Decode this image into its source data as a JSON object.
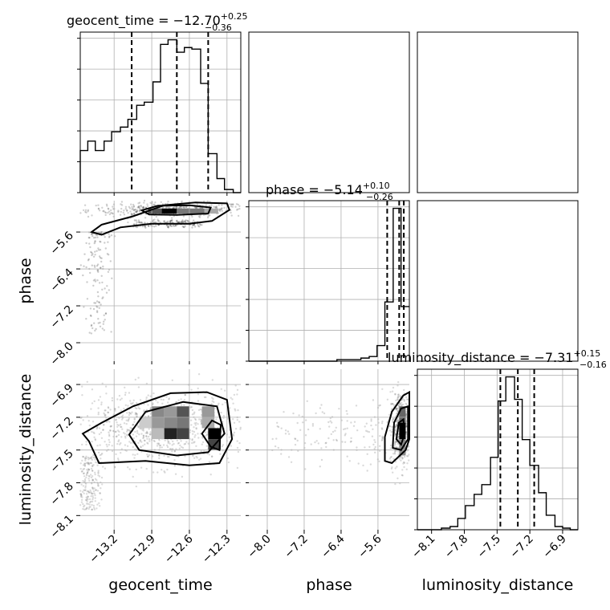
{
  "chart_data": {
    "type": "corner",
    "parameters": [
      "geocent_time",
      "phase",
      "luminosity_distance"
    ],
    "titles": [
      {
        "param": "geocent_time",
        "text": "geocent_time = −12.70",
        "plus": "+0.25",
        "minus": "−0.36"
      },
      {
        "param": "phase",
        "text": "phase = −5.14",
        "plus": "+0.10",
        "minus": "−0.26"
      },
      {
        "param": "luminosity_distance",
        "text": "luminosity_distance = −7.31",
        "plus": "+0.15",
        "minus": "−0.16"
      }
    ],
    "axis_labels": {
      "geocent_time": "geocent_time",
      "phase": "phase",
      "luminosity_distance": "luminosity_distance"
    },
    "ranges": {
      "geocent_time": [
        -13.47,
        -12.19
      ],
      "phase": [
        -8.4,
        -4.92
      ],
      "luminosity_distance": [
        -8.23,
        -6.76
      ]
    },
    "ticks": {
      "geocent_time": [
        -13.2,
        -12.9,
        -12.6,
        -12.3
      ],
      "phase": [
        -8.0,
        -7.2,
        -6.4,
        -5.6
      ],
      "luminosity_distance": [
        -8.1,
        -7.8,
        -7.5,
        -7.2,
        -6.9
      ]
    },
    "tick_labels": {
      "geocent_time": [
        "−13.2",
        "−12.9",
        "−12.6",
        "−12.3"
      ],
      "phase": [
        "−8.0",
        "−7.2",
        "−6.4",
        "−5.6"
      ],
      "luminosity_distance": [
        "−8.1",
        "−7.8",
        "−7.5",
        "−7.2",
        "−6.9"
      ]
    },
    "quantiles": {
      "geocent_time": [
        -13.06,
        -12.7,
        -12.45
      ],
      "phase": [
        -5.4,
        -5.14,
        -5.04
      ],
      "luminosity_distance": [
        -7.47,
        -7.31,
        -7.16
      ]
    },
    "histograms": {
      "geocent_time": {
        "edges": [
          -13.47,
          -13.41,
          -13.35,
          -13.28,
          -13.22,
          -13.15,
          -13.09,
          -13.02,
          -12.96,
          -12.89,
          -12.83,
          -12.77,
          -12.7,
          -12.64,
          -12.58,
          -12.51,
          -12.45,
          -12.38,
          -12.32,
          -12.25,
          -12.19
        ],
        "counts": [
          27,
          33,
          27,
          33,
          39,
          42,
          47,
          56,
          58,
          71,
          95,
          98,
          90,
          93,
          92,
          70,
          25,
          9,
          2,
          0
        ]
      },
      "phase": {
        "edges": [
          -8.4,
          -8.23,
          -8.05,
          -7.88,
          -7.71,
          -7.53,
          -7.36,
          -7.18,
          -7.01,
          -6.84,
          -6.66,
          -6.49,
          -6.32,
          -6.14,
          -5.97,
          -5.79,
          -5.62,
          -5.45,
          -5.27,
          -5.1,
          -4.92
        ],
        "counts": [
          0,
          0,
          0,
          0,
          0,
          0,
          0,
          0,
          0,
          0,
          0,
          1,
          1,
          1,
          2,
          3,
          10,
          38,
          98,
          35
        ]
      },
      "luminosity_distance": {
        "edges": [
          -8.23,
          -8.16,
          -8.08,
          -8.01,
          -7.93,
          -7.86,
          -7.79,
          -7.71,
          -7.64,
          -7.56,
          -7.49,
          -7.42,
          -7.34,
          -7.27,
          -7.2,
          -7.12,
          -7.05,
          -6.97,
          -6.9,
          -6.83,
          -6.76
        ],
        "counts": [
          0,
          0,
          0,
          1,
          2,
          7,
          15,
          22,
          28,
          45,
          80,
          95,
          81,
          56,
          40,
          23,
          9,
          2,
          1,
          0
        ]
      }
    },
    "pairs": [
      {
        "x": "geocent_time",
        "y": "phase"
      },
      {
        "x": "geocent_time",
        "y": "luminosity_distance"
      },
      {
        "x": "phase",
        "y": "luminosity_distance"
      }
    ],
    "grid": true
  }
}
